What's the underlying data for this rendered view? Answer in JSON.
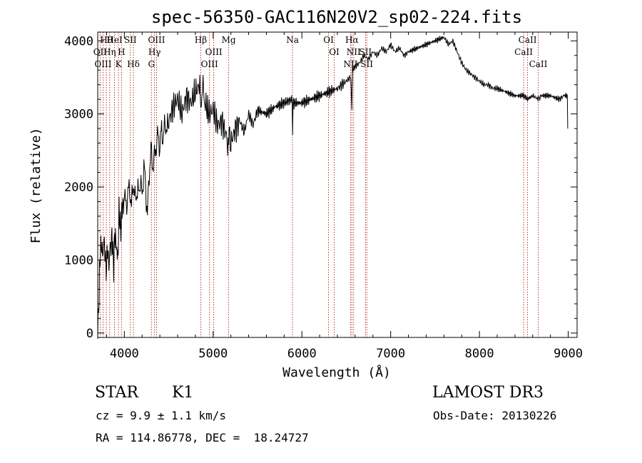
{
  "chart_data": {
    "type": "line",
    "title": "spec-56350-GAC116N20V2_sp02-224.fits",
    "xlabel": "Wavelength (Å)",
    "ylabel": "Flux (relative)",
    "xlim": [
      3700,
      9100
    ],
    "ylim": [
      -60,
      4120
    ],
    "xticks": [
      4000,
      5000,
      6000,
      7000,
      8000,
      9000
    ],
    "yticks": [
      0,
      1000,
      2000,
      3000,
      4000
    ],
    "series": [
      {
        "name": "spectrum",
        "x": [
          3700,
          3710,
          3720,
          3730,
          3740,
          3750,
          3760,
          3770,
          3780,
          3790,
          3800,
          3810,
          3820,
          3830,
          3840,
          3850,
          3860,
          3870,
          3880,
          3890,
          3900,
          3910,
          3920,
          3930,
          3940,
          3950,
          3960,
          3970,
          3980,
          3990,
          4000,
          4020,
          4040,
          4060,
          4080,
          4100,
          4120,
          4140,
          4160,
          4180,
          4200,
          4220,
          4240,
          4260,
          4280,
          4300,
          4320,
          4340,
          4360,
          4380,
          4400,
          4420,
          4440,
          4460,
          4480,
          4500,
          4550,
          4600,
          4650,
          4700,
          4750,
          4800,
          4850,
          4860,
          4880,
          4900,
          4920,
          4950,
          5000,
          5050,
          5100,
          5150,
          5170,
          5180,
          5200,
          5250,
          5300,
          5350,
          5400,
          5450,
          5500,
          5600,
          5700,
          5800,
          5890,
          5895,
          5900,
          6000,
          6100,
          6200,
          6300,
          6400,
          6450,
          6500,
          6550,
          6563,
          6570,
          6600,
          6650,
          6700,
          6750,
          6800,
          6850,
          6900,
          6950,
          7000,
          7050,
          7100,
          7150,
          7200,
          7300,
          7400,
          7500,
          7600,
          7650,
          7700,
          7750,
          7800,
          7850,
          7900,
          7950,
          8000,
          8050,
          8100,
          8150,
          8200,
          8300,
          8400,
          8500,
          8542,
          8600,
          8662,
          8700,
          8800,
          8900,
          8950,
          8990,
          8995
        ],
        "values": [
          50,
          300,
          800,
          1100,
          1200,
          1150,
          1050,
          1300,
          1100,
          950,
          850,
          1200,
          1000,
          950,
          1250,
          1150,
          1400,
          1100,
          900,
          1350,
          1300,
          1200,
          1050,
          1100,
          1700,
          1500,
          1400,
          1600,
          1800,
          1700,
          1850,
          1750,
          1900,
          2000,
          1700,
          2100,
          1800,
          1950,
          1900,
          2100,
          1850,
          2300,
          2000,
          1600,
          2200,
          2500,
          2300,
          2400,
          2600,
          2700,
          2550,
          2800,
          2650,
          2900,
          2750,
          2900,
          3100,
          3200,
          3000,
          3250,
          3150,
          3300,
          3400,
          3150,
          3350,
          3250,
          3100,
          3000,
          3050,
          2850,
          2900,
          2700,
          2600,
          2750,
          2600,
          2800,
          2900,
          2750,
          3000,
          2850,
          3050,
          3000,
          3100,
          3150,
          3200,
          2700,
          3150,
          3150,
          3200,
          3250,
          3300,
          3350,
          3400,
          3450,
          3500,
          3050,
          3600,
          3650,
          3700,
          3800,
          3750,
          3850,
          3800,
          3900,
          3850,
          3950,
          3850,
          3900,
          3800,
          3850,
          3900,
          3950,
          4000,
          4050,
          3950,
          4000,
          3850,
          3700,
          3600,
          3550,
          3500,
          3450,
          3400,
          3400,
          3350,
          3350,
          3300,
          3250,
          3250,
          3200,
          3250,
          3200,
          3250,
          3250,
          3200,
          3250,
          3250,
          2800
        ]
      }
    ],
    "lines": [
      {
        "name": "Hθ",
        "x": 3797
      },
      {
        "name": "OII",
        "x": 3727
      },
      {
        "name": "OIII",
        "x": 3760
      },
      {
        "name": "HeI",
        "x": 3889
      },
      {
        "name": "Hη",
        "x": 3835
      },
      {
        "name": "K",
        "x": 3934
      },
      {
        "name": "SII",
        "x": 4068
      },
      {
        "name": "H",
        "x": 3968
      },
      {
        "name": "Hδ",
        "x": 4102
      },
      {
        "name": "OIII",
        "x": 4363
      },
      {
        "name": "Hγ",
        "x": 4340
      },
      {
        "name": "G",
        "x": 4305
      },
      {
        "name": "Hβ",
        "x": 4861
      },
      {
        "name": "OIII",
        "x": 5007
      },
      {
        "name": "OIII",
        "x": 4959
      },
      {
        "name": "Mg",
        "x": 5175
      },
      {
        "name": "Na",
        "x": 5894
      },
      {
        "name": "OI",
        "x": 6300
      },
      {
        "name": "OI",
        "x": 6364
      },
      {
        "name": "Hα",
        "x": 6563
      },
      {
        "name": "NII",
        "x": 6583
      },
      {
        "name": "NII",
        "x": 6548
      },
      {
        "name": "SII",
        "x": 6716
      },
      {
        "name": "SII",
        "x": 6731
      },
      {
        "name": "CaII",
        "x": 8542
      },
      {
        "name": "CaII",
        "x": 8498
      },
      {
        "name": "CaII",
        "x": 8662
      }
    ]
  },
  "info": {
    "class": "STAR",
    "subclass": "K1",
    "survey": "LAMOST DR3",
    "cz": "cz = 9.9 ± 1.1 km/s",
    "obsdate": "Obs-Date: 20130226",
    "radec": "RA = 114.86778, DEC =  18.24727"
  },
  "colors": {
    "spectrum": "#000000",
    "lines": "#b22222",
    "axis": "#000000"
  }
}
